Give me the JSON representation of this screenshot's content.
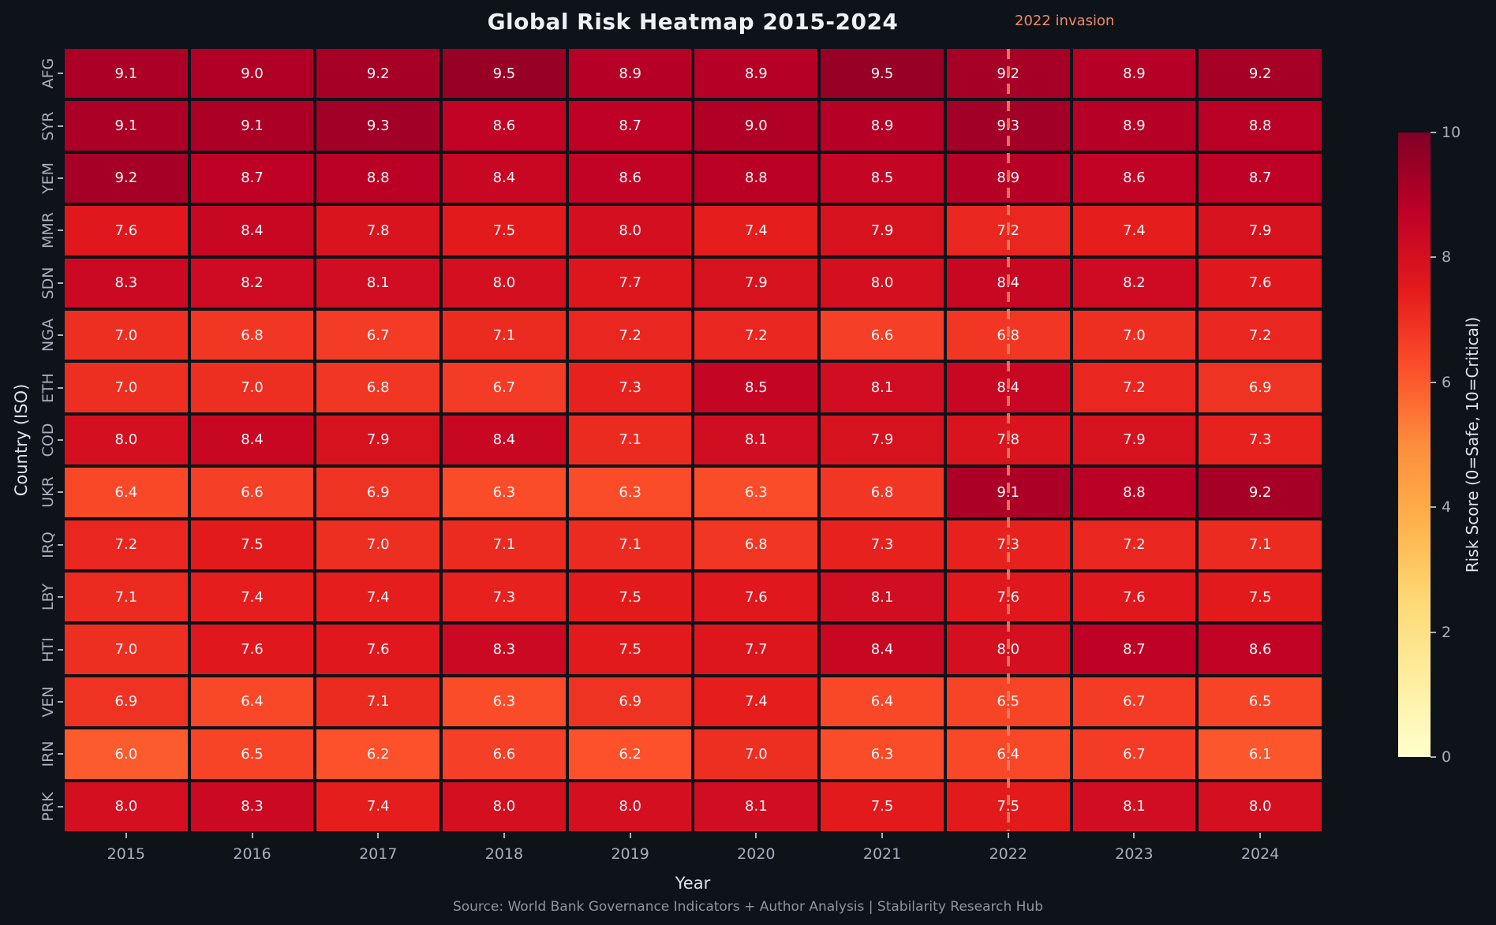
{
  "title": "Global Risk Heatmap 2015-2024",
  "annotation": {
    "label": "2022 invasion",
    "target_year": "2022"
  },
  "footer": {
    "source": "Source: World Bank Governance Indicators + Author Analysis | Stabilarity Research Hub"
  },
  "colors": {
    "background": "#0e1219",
    "title": "#eef1f5",
    "tick_label": "#a9b0bb",
    "axis_label": "#dfe3e9",
    "cell_text": "#f7f7f8",
    "source": "#8e95a1",
    "annotation": "#f08a66",
    "dashed_line": "#ee8465"
  },
  "chart_data": {
    "type": "heatmap",
    "title": "Global Risk Heatmap 2015-2024",
    "xlabel": "Year",
    "ylabel": "Country (ISO)",
    "x": [
      "2015",
      "2016",
      "2017",
      "2018",
      "2019",
      "2020",
      "2021",
      "2022",
      "2023",
      "2024"
    ],
    "categories": [
      "AFG",
      "SYR",
      "YEM",
      "MMR",
      "SDN",
      "NGA",
      "ETH",
      "COD",
      "UKR",
      "IRQ",
      "LBY",
      "HTI",
      "VEN",
      "IRN",
      "PRK"
    ],
    "values": [
      [
        9.1,
        9.0,
        9.2,
        9.5,
        8.9,
        8.9,
        9.5,
        9.2,
        8.9,
        9.2
      ],
      [
        9.1,
        9.1,
        9.3,
        8.6,
        8.7,
        9.0,
        8.9,
        9.3,
        8.9,
        8.8
      ],
      [
        9.2,
        8.7,
        8.8,
        8.4,
        8.6,
        8.8,
        8.5,
        8.9,
        8.6,
        8.7
      ],
      [
        7.6,
        8.4,
        7.8,
        7.5,
        8.0,
        7.4,
        7.9,
        7.2,
        7.4,
        7.9
      ],
      [
        8.3,
        8.2,
        8.1,
        8.0,
        7.7,
        7.9,
        8.0,
        8.4,
        8.2,
        7.6
      ],
      [
        7.0,
        6.8,
        6.7,
        7.1,
        7.2,
        7.2,
        6.6,
        6.8,
        7.0,
        7.2
      ],
      [
        7.0,
        7.0,
        6.8,
        6.7,
        7.3,
        8.5,
        8.1,
        8.4,
        7.2,
        6.9
      ],
      [
        8.0,
        8.4,
        7.9,
        8.4,
        7.1,
        8.1,
        7.9,
        7.8,
        7.9,
        7.3
      ],
      [
        6.4,
        6.6,
        6.9,
        6.3,
        6.3,
        6.3,
        6.8,
        9.1,
        8.8,
        9.2
      ],
      [
        7.2,
        7.5,
        7.0,
        7.1,
        7.1,
        6.8,
        7.3,
        7.3,
        7.2,
        7.1
      ],
      [
        7.1,
        7.4,
        7.4,
        7.3,
        7.5,
        7.6,
        8.1,
        7.6,
        7.6,
        7.5
      ],
      [
        7.0,
        7.6,
        7.6,
        8.3,
        7.5,
        7.7,
        8.4,
        8.0,
        8.7,
        8.6
      ],
      [
        6.9,
        6.4,
        7.1,
        6.3,
        6.9,
        7.4,
        6.4,
        6.5,
        6.7,
        6.5
      ],
      [
        6.0,
        6.5,
        6.2,
        6.6,
        6.2,
        7.0,
        6.3,
        6.4,
        6.7,
        6.1
      ],
      [
        8.0,
        8.3,
        7.4,
        8.0,
        8.0,
        8.1,
        7.5,
        7.5,
        8.1,
        8.0
      ]
    ],
    "vmin": 0,
    "vmax": 10,
    "grid": false,
    "colormap": {
      "name": "YlOrRd",
      "stops": [
        {
          "t": 0.0,
          "color": "#ffffcc"
        },
        {
          "t": 0.125,
          "color": "#ffeda0"
        },
        {
          "t": 0.25,
          "color": "#fed976"
        },
        {
          "t": 0.375,
          "color": "#feb24c"
        },
        {
          "t": 0.5,
          "color": "#fd8d3c"
        },
        {
          "t": 0.625,
          "color": "#fc4e2a"
        },
        {
          "t": 0.75,
          "color": "#e31a1c"
        },
        {
          "t": 0.875,
          "color": "#bd0026"
        },
        {
          "t": 1.0,
          "color": "#800026"
        }
      ]
    },
    "colorbar": {
      "label": "Risk Score (0=Safe, 10=Critical)",
      "ticks": [
        0,
        2,
        4,
        6,
        8,
        10
      ]
    }
  }
}
